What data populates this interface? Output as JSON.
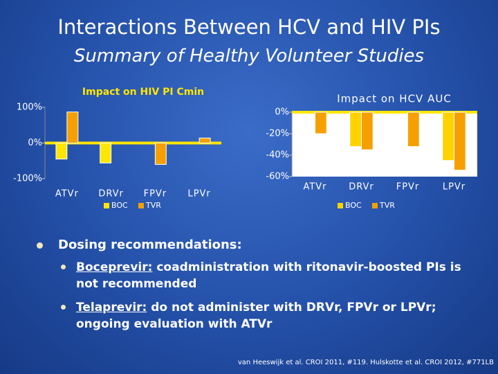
{
  "title": "Interactions Between HCV and HIV PIs",
  "subtitle": "Summary of Healthy Volunteer Studies",
  "heading": "Dosing recommendations:",
  "bullets": [
    {
      "label": "Boceprevir:",
      "text": "coadministration with ritonavir-boosted PIs is not recommended"
    },
    {
      "label": "Telaprevir:",
      "text": "do not administer with DRVr, FPVr or LPVr; ongoing evaluation with ATVr"
    }
  ],
  "citation": "van Heeswijk et al. CROI 2011, #119. Hulskotte et al. CROI 2012, #771LB",
  "chart_data": [
    {
      "type": "bar",
      "title": "Impact on HIV PI Cmin",
      "categories": [
        "ATVr",
        "DRVr",
        "FPVr",
        "LPVr"
      ],
      "series": [
        {
          "name": "BOC",
          "color": "#ffe600",
          "values": [
            -45,
            -56,
            null,
            null
          ]
        },
        {
          "name": "TVR",
          "color": "#f5a000",
          "values": [
            87,
            null,
            -60,
            14
          ]
        }
      ],
      "ylim": [
        -100,
        100
      ],
      "yticks": [
        {
          "value": 100,
          "label": "100%"
        },
        {
          "value": 0,
          "label": "0%"
        },
        {
          "value": -100,
          "label": "-100%"
        }
      ]
    },
    {
      "type": "bar",
      "title": "Impact on HCV AUC",
      "categories": [
        "ATVr",
        "DRVr",
        "FPVr",
        "LPVr"
      ],
      "series": [
        {
          "name": "BOC",
          "color": "#ffd200",
          "values": [
            null,
            -32,
            null,
            -45
          ]
        },
        {
          "name": "TVR",
          "color": "#f5a000",
          "values": [
            -20,
            -35,
            -32,
            -54
          ]
        }
      ],
      "ylim": [
        -60,
        0
      ],
      "yticks": [
        {
          "value": 0,
          "label": "0%"
        },
        {
          "value": -20,
          "label": "-20%"
        },
        {
          "value": -40,
          "label": "-40%"
        },
        {
          "value": -60,
          "label": "-60%"
        }
      ]
    }
  ]
}
